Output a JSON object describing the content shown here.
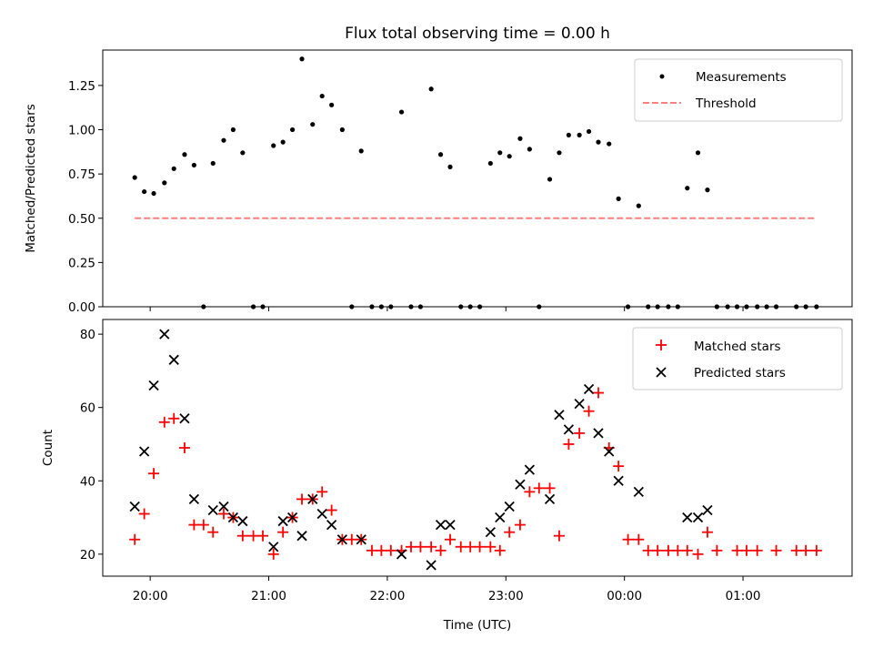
{
  "chart_data": [
    {
      "type": "scatter",
      "title": "Flux total observing time = 0.00 h",
      "ylabel": "Matched/Predicted stars",
      "xlabel": "",
      "x_unit": "hours UTC after 19:00 (values past 24 wrap to next day)",
      "ylim": [
        0,
        1.45
      ],
      "yticks": [
        "0.00",
        "0.25",
        "0.50",
        "0.75",
        "1.00",
        "1.25"
      ],
      "xlim": [
        19.6,
        25.92
      ],
      "legend": "top-right",
      "series": [
        {
          "name": "Measurements",
          "marker": "dot",
          "color": "#000000",
          "x": [
            19.87,
            19.95,
            20.03,
            20.12,
            20.2,
            20.29,
            20.37,
            20.45,
            20.53,
            20.62,
            20.7,
            20.78,
            20.87,
            20.95,
            21.04,
            21.12,
            21.2,
            21.28,
            21.37,
            21.45,
            21.53,
            21.62,
            21.7,
            21.78,
            21.87,
            21.95,
            22.03,
            22.12,
            22.2,
            22.28,
            22.37,
            22.45,
            22.53,
            22.62,
            22.7,
            22.78,
            22.87,
            22.95,
            23.03,
            23.12,
            23.2,
            23.28,
            23.37,
            23.45,
            23.53,
            23.62,
            23.7,
            23.78,
            23.87,
            23.95,
            24.03,
            24.12,
            24.2,
            24.28,
            24.37,
            24.45,
            24.53,
            24.62,
            24.7,
            24.78,
            24.87,
            24.95,
            25.03,
            25.12,
            25.2,
            25.28,
            25.45,
            25.53,
            25.62
          ],
          "y": [
            0.73,
            0.65,
            0.64,
            0.7,
            0.78,
            0.86,
            0.8,
            0.0,
            0.81,
            0.94,
            1.0,
            0.87,
            0.0,
            0.0,
            0.91,
            0.93,
            1.0,
            1.4,
            1.03,
            1.19,
            1.14,
            1.0,
            0.0,
            0.88,
            0.0,
            0.0,
            0.0,
            1.1,
            0.0,
            0.0,
            1.23,
            0.86,
            0.79,
            0.0,
            0.0,
            0.0,
            0.81,
            0.87,
            0.85,
            0.95,
            0.89,
            0.0,
            0.72,
            0.87,
            0.97,
            0.97,
            0.99,
            0.93,
            0.92,
            0.61,
            0.0,
            0.57,
            0.0,
            0.0,
            0.0,
            0.0,
            0.67,
            0.87,
            0.66,
            0.0,
            0.0,
            0.0,
            0.0,
            0.0,
            0.0,
            0.0,
            0.0,
            0.0,
            0.0
          ]
        },
        {
          "name": "Threshold",
          "marker": "dashed-line",
          "color": "#ff7f7f",
          "x": [
            19.87,
            25.62
          ],
          "y": [
            0.5,
            0.5
          ]
        }
      ]
    },
    {
      "type": "scatter",
      "title": "",
      "ylabel": "Count",
      "xlabel": "Time (UTC)",
      "ylim": [
        14,
        84
      ],
      "yticks": [
        "20",
        "40",
        "60",
        "80"
      ],
      "xlim": [
        19.6,
        25.92
      ],
      "xticks": [
        {
          "value": 20,
          "label": "20:00"
        },
        {
          "value": 21,
          "label": "21:00"
        },
        {
          "value": 22,
          "label": "22:00"
        },
        {
          "value": 23,
          "label": "23:00"
        },
        {
          "value": 24,
          "label": "00:00"
        },
        {
          "value": 25,
          "label": "01:00"
        }
      ],
      "legend": "top-right",
      "series": [
        {
          "name": "Matched stars",
          "marker": "plus",
          "color": "#ff0000",
          "x": [
            19.87,
            19.95,
            20.03,
            20.12,
            20.2,
            20.29,
            20.37,
            20.45,
            20.53,
            20.62,
            20.7,
            20.78,
            20.87,
            20.95,
            21.04,
            21.12,
            21.2,
            21.28,
            21.37,
            21.45,
            21.53,
            21.62,
            21.7,
            21.78,
            21.87,
            21.95,
            22.03,
            22.12,
            22.2,
            22.28,
            22.37,
            22.45,
            22.53,
            22.62,
            22.7,
            22.78,
            22.87,
            22.95,
            23.03,
            23.12,
            23.2,
            23.28,
            23.37,
            23.45,
            23.53,
            23.62,
            23.7,
            23.78,
            23.87,
            23.95,
            24.03,
            24.12,
            24.2,
            24.28,
            24.37,
            24.45,
            24.53,
            24.62,
            24.7,
            24.78,
            24.95,
            25.03,
            25.12,
            25.28,
            25.45,
            25.53,
            25.62
          ],
          "y": [
            24,
            31,
            42,
            56,
            57,
            49,
            28,
            28,
            26,
            31,
            30,
            25,
            25,
            25,
            20,
            26,
            30,
            35,
            35,
            37,
            32,
            24,
            24,
            24,
            21,
            21,
            21,
            21,
            22,
            22,
            22,
            21,
            24,
            22,
            22,
            22,
            22,
            21,
            26,
            28,
            37,
            38,
            38,
            25,
            50,
            53,
            59,
            64,
            49,
            44,
            24,
            24,
            21,
            21,
            21,
            21,
            21,
            20,
            26,
            21,
            21,
            21,
            21,
            21,
            21,
            21,
            21
          ]
        },
        {
          "name": "Predicted stars",
          "marker": "x",
          "color": "#000000",
          "x": [
            19.87,
            19.95,
            20.03,
            20.12,
            20.2,
            20.29,
            20.37,
            20.53,
            20.62,
            20.7,
            20.78,
            21.04,
            21.12,
            21.2,
            21.28,
            21.37,
            21.45,
            21.53,
            21.62,
            21.78,
            22.12,
            22.37,
            22.45,
            22.53,
            22.87,
            22.95,
            23.03,
            23.12,
            23.2,
            23.37,
            23.45,
            23.53,
            23.62,
            23.7,
            23.78,
            23.87,
            23.95,
            24.12,
            24.53,
            24.62,
            24.7
          ],
          "y": [
            33,
            48,
            66,
            80,
            73,
            57,
            35,
            32,
            33,
            30,
            29,
            22,
            29,
            30,
            25,
            35,
            31,
            28,
            24,
            24,
            20,
            17,
            28,
            28,
            26,
            30,
            33,
            39,
            43,
            35,
            58,
            54,
            61,
            65,
            53,
            48,
            40,
            37,
            30,
            30,
            32
          ]
        }
      ]
    }
  ]
}
